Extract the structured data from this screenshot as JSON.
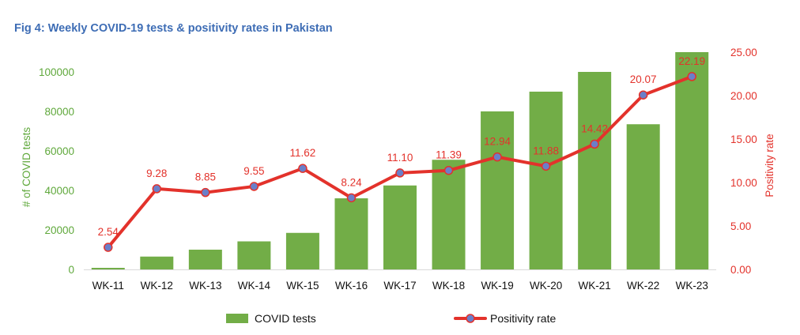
{
  "title": "Fig 4: Weekly COVID-19 tests & positivity rates in Pakistan",
  "colors": {
    "title": "#3e6db5",
    "bars": "#72ad47",
    "line": "#e3322b",
    "marker_fill": "#6a7fc9",
    "left_axis": "#5fa83b",
    "right_axis": "#e3322b"
  },
  "chart_data": {
    "type": "bar",
    "categories": [
      "WK-11",
      "WK-12",
      "WK-13",
      "WK-14",
      "WK-15",
      "WK-16",
      "WK-17",
      "WK-18",
      "WK-19",
      "WK-20",
      "WK-21",
      "WK-22",
      "WK-23"
    ],
    "series": [
      {
        "name": "COVID tests",
        "type": "bar",
        "axis": "left",
        "values": [
          800,
          6500,
          10000,
          14200,
          18500,
          36000,
          42500,
          55500,
          80000,
          90000,
          100000,
          73500,
          110000
        ]
      },
      {
        "name": "Positivity rate",
        "type": "line",
        "axis": "right",
        "values": [
          2.54,
          9.28,
          8.85,
          9.55,
          11.62,
          8.24,
          11.1,
          11.39,
          12.94,
          11.88,
          14.42,
          20.07,
          22.19
        ],
        "labels": [
          "2.54",
          "9.28",
          "8.85",
          "9.55",
          "11.62",
          "8.24",
          "11.10",
          "11.39",
          "12.94",
          "11.88",
          "14.42",
          "20.07",
          "22.19"
        ]
      }
    ],
    "y_left": {
      "label": "# of COVID tests",
      "ylim": [
        0,
        110000
      ],
      "ticks": [
        0,
        20000,
        40000,
        60000,
        80000,
        100000
      ],
      "tick_labels": [
        "0",
        "20000",
        "40000",
        "60000",
        "80000",
        "100000"
      ]
    },
    "y_right": {
      "label": "Positivity rate",
      "ylim": [
        0,
        25
      ],
      "ticks": [
        0,
        5,
        10,
        15,
        20,
        25
      ],
      "tick_labels": [
        "0.00",
        "5.00",
        "10.00",
        "15.00",
        "20.00",
        "25.00"
      ]
    },
    "grid": false,
    "legend": {
      "position": "bottom",
      "entries": [
        "COVID tests",
        "Positivity rate"
      ]
    }
  }
}
